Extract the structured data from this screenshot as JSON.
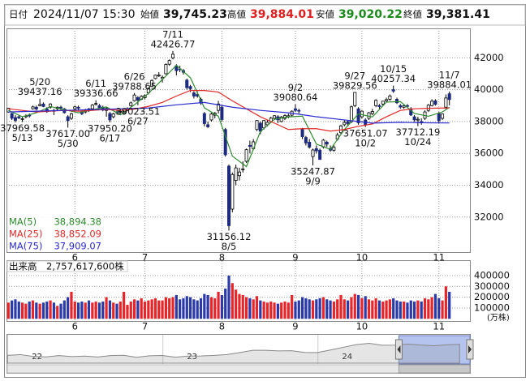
{
  "header": {
    "date_label": "日付",
    "date": "2024/11/07 15:30",
    "open_label": "始値",
    "open": "39,745.23",
    "high_label": "高値",
    "high": "39,884.01",
    "low_label": "安値",
    "low": "39,020.22",
    "close_label": "終値",
    "close": "39,381.41"
  },
  "chart_data": {
    "type": "candlestick",
    "ohlc": [
      [
        38600,
        38863,
        38550,
        38835
      ],
      [
        38500,
        38550,
        38100,
        38202
      ],
      [
        38250,
        38400,
        37950,
        38073
      ],
      [
        38300,
        38400,
        38150,
        38229
      ],
      [
        38150,
        38300,
        37969.58,
        38179
      ],
      [
        38300,
        38450,
        38200,
        38356
      ],
      [
        38400,
        38500,
        38250,
        38385
      ],
      [
        38800,
        39000,
        38750,
        38920
      ],
      [
        38900,
        39000,
        38700,
        38787
      ],
      [
        39000,
        39437.16,
        38950,
        39069
      ],
      [
        39100,
        39200,
        38900,
        38946
      ],
      [
        38800,
        38900,
        38550,
        38617
      ],
      [
        38900,
        39150,
        38800,
        39103
      ],
      [
        38700,
        38800,
        38400,
        38646
      ],
      [
        38800,
        38950,
        38700,
        38900
      ],
      [
        38900,
        39000,
        38700,
        38855
      ],
      [
        38800,
        38850,
        38500,
        38556
      ],
      [
        38300,
        38400,
        37617,
        38054
      ],
      [
        38200,
        38550,
        38100,
        38487
      ],
      [
        38800,
        39000,
        38700,
        38923
      ],
      [
        38900,
        39000,
        38700,
        38837
      ],
      [
        38600,
        38700,
        38400,
        38490
      ],
      [
        38600,
        38800,
        38500,
        38703
      ],
      [
        38800,
        38850,
        38600,
        38683
      ],
      [
        38800,
        39100,
        38750,
        39038
      ],
      [
        39100,
        39336.66,
        39000,
        39134
      ],
      [
        39000,
        39100,
        38800,
        38876
      ],
      [
        38900,
        39000,
        38650,
        38720
      ],
      [
        38700,
        38900,
        38300,
        38814
      ],
      [
        38500,
        38600,
        37950.2,
        38102
      ],
      [
        38300,
        38550,
        38200,
        38482
      ],
      [
        38600,
        38700,
        38450,
        38570
      ],
      [
        38600,
        38750,
        38500,
        38633
      ],
      [
        38500,
        38700,
        38450,
        38596
      ],
      [
        38700,
        38900,
        38650,
        38804
      ],
      [
        39000,
        39250,
        38950,
        39173
      ],
      [
        39300,
        39788.65,
        39250,
        39667
      ],
      [
        39500,
        39600,
        39023.51,
        39341
      ],
      [
        39400,
        39650,
        39350,
        39583
      ],
      [
        39500,
        39700,
        39400,
        39631
      ],
      [
        39800,
        40150,
        39700,
        40074
      ],
      [
        40200,
        40650,
        40150,
        40580
      ],
      [
        40700,
        40950,
        40650,
        40913
      ],
      [
        40900,
        41100,
        40800,
        40912
      ],
      [
        40700,
        40900,
        40450,
        40780
      ],
      [
        41000,
        41650,
        40950,
        41580
      ],
      [
        41600,
        41900,
        41500,
        41831
      ],
      [
        42000,
        42426.77,
        41900,
        42224
      ],
      [
        41500,
        41600,
        40900,
        41190
      ],
      [
        41300,
        41500,
        41100,
        41275
      ],
      [
        41200,
        41300,
        40950,
        41097
      ],
      [
        40600,
        40700,
        40000,
        40126
      ],
      [
        40200,
        40300,
        39850,
        40063
      ],
      [
        39800,
        39900,
        39450,
        39599
      ],
      [
        39700,
        39900,
        39500,
        39594
      ],
      [
        39400,
        39500,
        39050,
        39154
      ],
      [
        38500,
        38600,
        37700,
        37869
      ],
      [
        37800,
        38000,
        37600,
        37667
      ],
      [
        38100,
        38550,
        38000,
        38468
      ],
      [
        38400,
        38600,
        38200,
        38525
      ],
      [
        38700,
        39300,
        38500,
        39101
      ],
      [
        38900,
        39000,
        38000,
        38126
      ],
      [
        37500,
        37600,
        35800,
        35909
      ],
      [
        35200,
        35300,
        31156.12,
        31458
      ],
      [
        32500,
        34800,
        32300,
        34675
      ],
      [
        34300,
        35300,
        34000,
        35089
      ],
      [
        34600,
        35100,
        34300,
        34831
      ],
      [
        35000,
        35500,
        34800,
        35025
      ],
      [
        35500,
        36300,
        35400,
        36232
      ],
      [
        36500,
        36800,
        36000,
        36442
      ],
      [
        36300,
        36900,
        36200,
        36726
      ],
      [
        37500,
        38100,
        37400,
        38062
      ],
      [
        37900,
        38000,
        37200,
        37388
      ],
      [
        37600,
        38100,
        37500,
        38062
      ],
      [
        37800,
        38100,
        37700,
        37951
      ],
      [
        38000,
        38300,
        37900,
        38211
      ],
      [
        38200,
        38400,
        38100,
        38364
      ],
      [
        38300,
        38400,
        37900,
        38110
      ],
      [
        38000,
        38350,
        37950,
        38288
      ],
      [
        38200,
        38450,
        38100,
        38371
      ],
      [
        38300,
        38500,
        38200,
        38362
      ],
      [
        38400,
        38700,
        38300,
        38647
      ],
      [
        38800,
        39080.64,
        38600,
        38700
      ],
      [
        38700,
        38800,
        38500,
        38686
      ],
      [
        37500,
        37600,
        36900,
        37047
      ],
      [
        37000,
        37100,
        36500,
        36657
      ],
      [
        36700,
        36900,
        36300,
        36391
      ],
      [
        35800,
        36300,
        35247.87,
        36215
      ],
      [
        36300,
        36500,
        36000,
        36159
      ],
      [
        36200,
        36300,
        35600,
        35619
      ],
      [
        36400,
        36900,
        36300,
        36833
      ],
      [
        36700,
        36800,
        36400,
        36581
      ],
      [
        36300,
        36500,
        36100,
        36203
      ],
      [
        36200,
        36500,
        36100,
        36380
      ],
      [
        36900,
        37300,
        36800,
        37155
      ],
      [
        37300,
        37800,
        37200,
        37723
      ],
      [
        37800,
        38100,
        37700,
        37940
      ],
      [
        38000,
        38100,
        37700,
        37870
      ],
      [
        38000,
        39000,
        37900,
        38925
      ],
      [
        39000,
        39829.56,
        38900,
        39829
      ],
      [
        38800,
        38900,
        37800,
        37919
      ],
      [
        38300,
        38700,
        38200,
        38651
      ],
      [
        38100,
        38200,
        37651.07,
        37808
      ],
      [
        38200,
        38600,
        38100,
        38552
      ],
      [
        38500,
        38800,
        38400,
        38635
      ],
      [
        39000,
        39400,
        38900,
        39332
      ],
      [
        39000,
        39100,
        38800,
        38937
      ],
      [
        39100,
        39300,
        39000,
        39277
      ],
      [
        39300,
        39500,
        39200,
        39380
      ],
      [
        39400,
        39700,
        39300,
        39605
      ],
      [
        40000,
        40257.34,
        39800,
        39910
      ],
      [
        39400,
        39500,
        39100,
        39180
      ],
      [
        39000,
        39100,
        38800,
        38911
      ],
      [
        38900,
        39100,
        38800,
        38981
      ],
      [
        39000,
        39100,
        38850,
        38954
      ],
      [
        38800,
        38900,
        38350,
        38411
      ],
      [
        38300,
        38400,
        38000,
        38104
      ],
      [
        38100,
        38300,
        37712.19,
        38143
      ],
      [
        38000,
        38200,
        37800,
        37913
      ],
      [
        38200,
        38700,
        38100,
        38605
      ],
      [
        38700,
        39100,
        38600,
        39027
      ],
      [
        39000,
        39400,
        38950,
        39277
      ],
      [
        39300,
        39400,
        39000,
        39081
      ],
      [
        38500,
        38600,
        37900,
        38053
      ],
      [
        38200,
        38500,
        38100,
        38474
      ],
      [
        38900,
        39700,
        38800,
        39480
      ],
      [
        39745.23,
        39884.01,
        39020.22,
        39381.41
      ]
    ],
    "up_color": "#ffffff",
    "down_color": "#1c2a80",
    "edge_color": "#000000",
    "ylim": [
      29750,
      43850
    ],
    "yticks": [
      32000,
      34000,
      36000,
      38000,
      40000,
      42000
    ],
    "xlim": [
      -0.54,
      132.1
    ],
    "xticks": [
      {
        "value": 19,
        "label": "6"
      },
      {
        "value": 39,
        "label": "7"
      },
      {
        "value": 61,
        "label": "8"
      },
      {
        "value": 82,
        "label": "9"
      },
      {
        "value": 101,
        "label": "10"
      },
      {
        "value": 123,
        "label": "11"
      }
    ],
    "grid": true,
    "series": [
      {
        "name": "MA(5)",
        "color": "#2e8b2e",
        "legend_value": "38,894.38",
        "x": [
          0,
          4,
          8,
          12,
          16,
          20,
          24,
          28,
          32,
          36,
          40,
          44,
          48,
          52,
          56,
          60,
          64,
          68,
          72,
          76,
          80,
          84,
          88,
          92,
          96,
          100,
          104,
          108,
          112,
          116,
          120,
          124,
          126
        ],
        "values": [
          38700,
          38300,
          38550,
          38940,
          38750,
          38550,
          38740,
          38920,
          38420,
          39050,
          39770,
          40640,
          41530,
          40750,
          38860,
          38330,
          35830,
          35170,
          37370,
          38140,
          38290,
          38340,
          36580,
          36250,
          37500,
          38480,
          38290,
          39220,
          39250,
          38510,
          38330,
          38600,
          38894.38
        ]
      },
      {
        "name": "MA(25)",
        "color": "#e02828",
        "legend_value": "38,852.09",
        "x": [
          0,
          4,
          8,
          12,
          16,
          20,
          24,
          28,
          32,
          36,
          40,
          44,
          48,
          52,
          56,
          60,
          64,
          68,
          72,
          76,
          80,
          84,
          88,
          92,
          96,
          100,
          104,
          108,
          112,
          116,
          120,
          124,
          126
        ],
        "values": [
          38800,
          38700,
          38600,
          38650,
          38700,
          38650,
          38700,
          38760,
          38700,
          38780,
          38950,
          39200,
          39600,
          39950,
          39950,
          39850,
          39300,
          38800,
          38300,
          37900,
          37500,
          37550,
          37550,
          37400,
          37500,
          37700,
          37850,
          38300,
          38700,
          38800,
          38830,
          38850,
          38852.09
        ]
      },
      {
        "name": "MA(75)",
        "color": "#2a2ad0",
        "legend_value": "37,909.07",
        "x": [
          0,
          8,
          16,
          24,
          32,
          40,
          48,
          56,
          64,
          72,
          80,
          88,
          96,
          104,
          112,
          120,
          126
        ],
        "values": [
          38600,
          38650,
          38700,
          38750,
          38800,
          38850,
          39050,
          39200,
          38900,
          38700,
          38550,
          38300,
          38100,
          37900,
          37950,
          37920,
          37909.07
        ]
      }
    ],
    "annotations": [
      {
        "date": "5/13",
        "value": 37969.58,
        "x": 4,
        "side": "below"
      },
      {
        "date": "5/20",
        "value": 39437.16,
        "x": 9,
        "side": "above"
      },
      {
        "date": "5/30",
        "value": 37617,
        "value_label": "37617.00",
        "x": 17,
        "side": "below"
      },
      {
        "date": "6/11",
        "value": 39336.66,
        "x": 25,
        "side": "above"
      },
      {
        "date": "6/17",
        "value": 37950.2,
        "value_label": "37950.20",
        "x": 29,
        "side": "below"
      },
      {
        "date": "6/26",
        "value": 39788.65,
        "x": 36,
        "side": "above"
      },
      {
        "date": "6/27",
        "value": 39023.51,
        "x": 37,
        "side": "below"
      },
      {
        "date": "7/11",
        "value": 42426.77,
        "x": 47,
        "side": "above"
      },
      {
        "date": "8/5",
        "value": 31156.12,
        "x": 63,
        "side": "below"
      },
      {
        "date": "9/2",
        "value": 39080.64,
        "x": 82,
        "side": "above"
      },
      {
        "date": "9/9",
        "value": 35247.87,
        "x": 87,
        "side": "below"
      },
      {
        "date": "9/27",
        "value": 39829.56,
        "x": 99,
        "side": "above"
      },
      {
        "date": "10/2",
        "value": 37651.07,
        "x": 102,
        "side": "below"
      },
      {
        "date": "10/15",
        "value": 40257.34,
        "x": 110,
        "side": "above"
      },
      {
        "date": "10/24",
        "value": 37712.19,
        "x": 117,
        "side": "below"
      },
      {
        "date": "11/7",
        "value": 39884.01,
        "x": 126,
        "side": "above"
      }
    ],
    "volume": {
      "label": "出来高",
      "total": "2,757,617,600株",
      "unit": "(万株)",
      "up_color": "#e8262a",
      "down_color": "#2a3aa8",
      "ylim": [
        0,
        440000
      ],
      "yticks": [
        100000,
        200000,
        300000,
        400000
      ],
      "values": [
        150000,
        170000,
        180000,
        160000,
        150000,
        140000,
        160000,
        170000,
        150000,
        140000,
        150000,
        160000,
        170000,
        150000,
        120000,
        140000,
        170000,
        200000,
        250000,
        160000,
        150000,
        160000,
        150000,
        170000,
        150000,
        160000,
        150000,
        160000,
        200000,
        170000,
        150000,
        140000,
        160000,
        250000,
        130000,
        160000,
        180000,
        170000,
        190000,
        160000,
        170000,
        180000,
        190000,
        170000,
        170000,
        200000,
        190000,
        200000,
        220000,
        180000,
        190000,
        210000,
        200000,
        180000,
        170000,
        190000,
        230000,
        220000,
        200000,
        190000,
        250000,
        220000,
        280000,
        400000,
        330000,
        270000,
        230000,
        220000,
        200000,
        190000,
        180000,
        210000,
        170000,
        160000,
        150000,
        160000,
        150000,
        140000,
        150000,
        160000,
        150000,
        220000,
        160000,
        170000,
        200000,
        190000,
        180000,
        170000,
        180000,
        190000,
        200000,
        180000,
        170000,
        160000,
        180000,
        220000,
        180000,
        170000,
        200000,
        230000,
        220000,
        190000,
        210000,
        180000,
        170000,
        190000,
        170000,
        160000,
        170000,
        180000,
        190000,
        170000,
        160000,
        160000,
        150000,
        170000,
        160000,
        170000,
        160000,
        190000,
        180000,
        200000,
        230000,
        190000,
        170000,
        300000,
        250000
      ]
    }
  },
  "navigator": {
    "values": [
      28000,
      28800,
      27000,
      26500,
      27800,
      26800,
      27300,
      26400,
      27800,
      28100,
      26000,
      27600,
      27900,
      26100,
      27300,
      27400,
      28000,
      28900,
      30900,
      33200,
      33200,
      32600,
      32800,
      31000,
      30900,
      33500,
      36300,
      39100,
      40400,
      38400,
      38500,
      39600,
      38600,
      37900,
      38900,
      39400
    ],
    "xlim": [
      0,
      35.8
    ],
    "ylim": [
      20000,
      45000
    ],
    "selected": [
      30.3,
      35.8
    ],
    "xticks": [
      {
        "value": 2.3,
        "label": "22"
      },
      {
        "value": 14.3,
        "label": "23"
      },
      {
        "value": 26.3,
        "label": "24"
      }
    ]
  }
}
